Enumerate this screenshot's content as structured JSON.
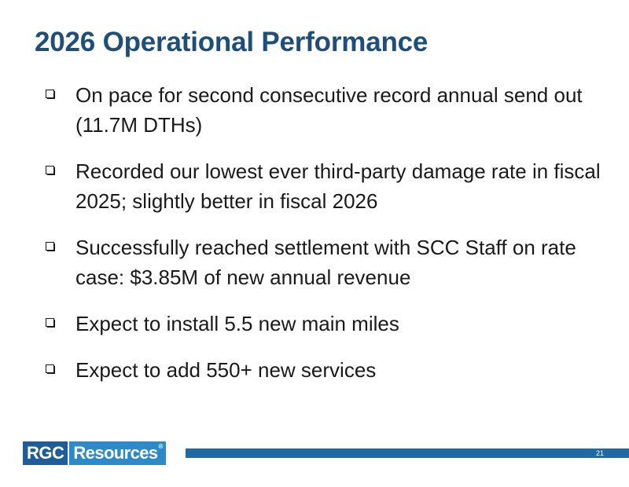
{
  "slide": {
    "title": "2026 Operational Performance",
    "bullets": [
      {
        "text": "On pace for second consecutive record annual send out (11.7M DTHs)"
      },
      {
        "text": "Recorded our lowest ever third-party damage rate in fiscal 2025; slightly better in fiscal 2026"
      },
      {
        "text": "Successfully reached settlement with SCC Staff on rate case: $3.85M of new annual revenue"
      },
      {
        "text": "Expect to install 5.5 new main miles"
      },
      {
        "text": "Expect to add 550+ new services"
      }
    ],
    "bullet_icon": "checkbox-bullet-icon"
  },
  "footer": {
    "logo_part1": "RGC",
    "logo_part2": "Resources",
    "logo_reg": "®",
    "page_number": "21"
  },
  "colors": {
    "title": "#1f4e79",
    "text": "#1a1a1a",
    "logo_dark": "#1f5d99",
    "logo_light": "#2e8ac7",
    "footer_bar": "#1f6aa5"
  }
}
